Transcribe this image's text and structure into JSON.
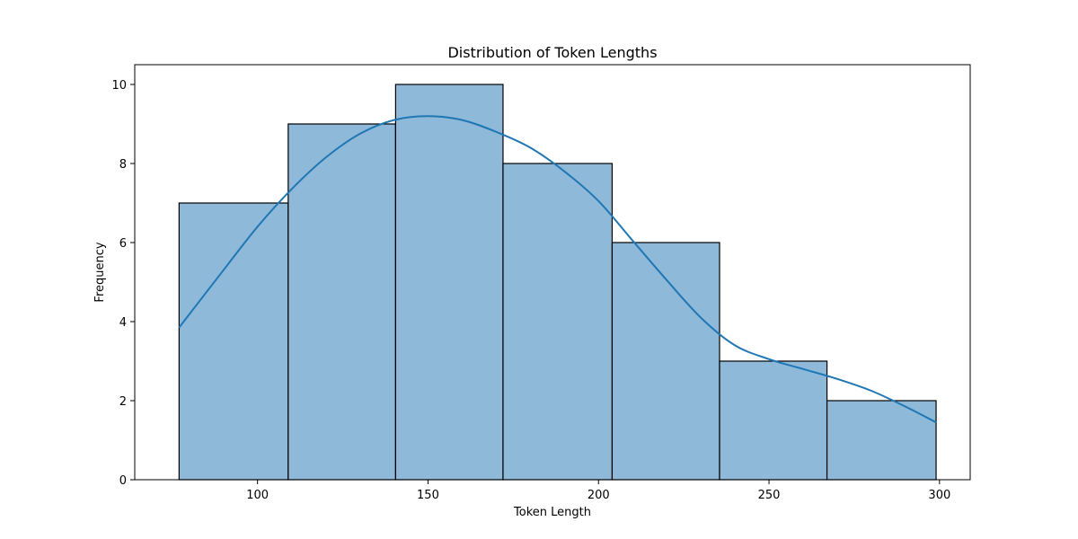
{
  "chart_data": {
    "type": "bar",
    "title": "Distribution of Token Lengths",
    "xlabel": "Token Length",
    "ylabel": "Frequency",
    "xlim": [
      64,
      309
    ],
    "ylim": [
      0,
      10.5
    ],
    "xticks": [
      100,
      150,
      200,
      250,
      300
    ],
    "yticks": [
      0,
      2,
      4,
      6,
      8,
      10
    ],
    "bins": [
      {
        "start": 77,
        "end": 109,
        "count": 7
      },
      {
        "start": 109,
        "end": 140.5,
        "count": 9
      },
      {
        "start": 140.5,
        "end": 172,
        "count": 10
      },
      {
        "start": 172,
        "end": 204,
        "count": 8
      },
      {
        "start": 204,
        "end": 235.5,
        "count": 6
      },
      {
        "start": 235.5,
        "end": 267,
        "count": 3
      },
      {
        "start": 267,
        "end": 299,
        "count": 2
      }
    ],
    "kde": {
      "x": [
        77,
        90,
        100,
        110,
        120,
        130,
        140,
        150,
        160,
        170,
        180,
        190,
        200,
        210,
        220,
        230,
        240,
        250,
        260,
        270,
        280,
        290,
        299
      ],
      "y": [
        3.85,
        5.3,
        6.4,
        7.35,
        8.15,
        8.75,
        9.1,
        9.2,
        9.1,
        8.8,
        8.4,
        7.8,
        7.05,
        6.05,
        5.05,
        4.1,
        3.4,
        3.05,
        2.8,
        2.55,
        2.25,
        1.85,
        1.45
      ]
    },
    "bar_color": "#8fb9d9",
    "bar_edge_color": "#000000",
    "kde_color": "#1f77b4",
    "grid": false,
    "legend": "none"
  }
}
